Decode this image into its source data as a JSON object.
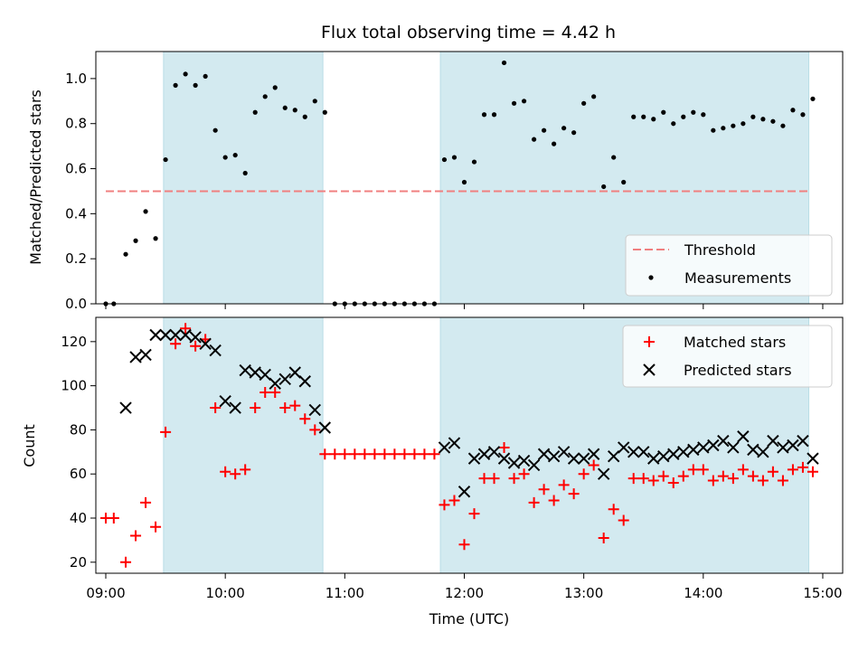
{
  "chart_data": {
    "type": "scatter",
    "title": "Flux total observing time = 4.42 h",
    "xlabel": "Time (UTC)",
    "x_ticks": [
      "09:00",
      "10:00",
      "11:00",
      "12:00",
      "13:00",
      "14:00",
      "15:00"
    ],
    "xlim": [
      "08:55",
      "15:10"
    ],
    "shaded_intervals": [
      [
        "09:29",
        "10:49"
      ],
      [
        "11:48",
        "14:53"
      ]
    ],
    "shade_color": "#d3eaf0",
    "top_panel": {
      "ylabel": "Matched/Predicted stars",
      "ylim": [
        0,
        1.12
      ],
      "y_ticks": [
        "0.0",
        "0.2",
        "0.4",
        "0.6",
        "0.8",
        "1.0"
      ],
      "threshold": {
        "name": "Threshold",
        "value": 0.5,
        "from": "09:00",
        "to": "14:53",
        "color": "#f08080"
      },
      "measurements": {
        "name": "Measurements",
        "color": "#000000",
        "points": [
          [
            "09:00",
            0.0
          ],
          [
            "09:04",
            0.0
          ],
          [
            "09:10",
            0.22
          ],
          [
            "09:15",
            0.28
          ],
          [
            "09:20",
            0.41
          ],
          [
            "09:25",
            0.29
          ],
          [
            "09:30",
            0.64
          ],
          [
            "09:35",
            0.97
          ],
          [
            "09:40",
            1.02
          ],
          [
            "09:45",
            0.97
          ],
          [
            "09:50",
            1.01
          ],
          [
            "09:55",
            0.77
          ],
          [
            "10:00",
            0.65
          ],
          [
            "10:05",
            0.66
          ],
          [
            "10:10",
            0.58
          ],
          [
            "10:15",
            0.85
          ],
          [
            "10:20",
            0.92
          ],
          [
            "10:25",
            0.96
          ],
          [
            "10:30",
            0.87
          ],
          [
            "10:35",
            0.86
          ],
          [
            "10:40",
            0.83
          ],
          [
            "10:45",
            0.9
          ],
          [
            "10:50",
            0.85
          ],
          [
            "10:55",
            0.0
          ],
          [
            "11:00",
            0.0
          ],
          [
            "11:05",
            0.0
          ],
          [
            "11:10",
            0.0
          ],
          [
            "11:15",
            0.0
          ],
          [
            "11:20",
            0.0
          ],
          [
            "11:25",
            0.0
          ],
          [
            "11:30",
            0.0
          ],
          [
            "11:35",
            0.0
          ],
          [
            "11:40",
            0.0
          ],
          [
            "11:45",
            0.0
          ],
          [
            "11:50",
            0.64
          ],
          [
            "11:55",
            0.65
          ],
          [
            "12:00",
            0.54
          ],
          [
            "12:05",
            0.63
          ],
          [
            "12:10",
            0.84
          ],
          [
            "12:15",
            0.84
          ],
          [
            "12:20",
            1.07
          ],
          [
            "12:25",
            0.89
          ],
          [
            "12:30",
            0.9
          ],
          [
            "12:35",
            0.73
          ],
          [
            "12:40",
            0.77
          ],
          [
            "12:45",
            0.71
          ],
          [
            "12:50",
            0.78
          ],
          [
            "12:55",
            0.76
          ],
          [
            "13:00",
            0.89
          ],
          [
            "13:05",
            0.92
          ],
          [
            "13:10",
            0.52
          ],
          [
            "13:15",
            0.65
          ],
          [
            "13:20",
            0.54
          ],
          [
            "13:25",
            0.83
          ],
          [
            "13:30",
            0.83
          ],
          [
            "13:35",
            0.82
          ],
          [
            "13:40",
            0.85
          ],
          [
            "13:45",
            0.8
          ],
          [
            "13:50",
            0.83
          ],
          [
            "13:55",
            0.85
          ],
          [
            "14:00",
            0.84
          ],
          [
            "14:05",
            0.77
          ],
          [
            "14:10",
            0.78
          ],
          [
            "14:15",
            0.79
          ],
          [
            "14:20",
            0.8
          ],
          [
            "14:25",
            0.83
          ],
          [
            "14:30",
            0.82
          ],
          [
            "14:35",
            0.81
          ],
          [
            "14:40",
            0.79
          ],
          [
            "14:45",
            0.86
          ],
          [
            "14:50",
            0.84
          ],
          [
            "14:55",
            0.91
          ]
        ]
      },
      "legend": {
        "position": "lower-right"
      }
    },
    "bottom_panel": {
      "ylabel": "Count",
      "ylim": [
        15,
        131
      ],
      "y_ticks": [
        "20",
        "40",
        "60",
        "80",
        "100",
        "120"
      ],
      "matched": {
        "name": "Matched stars",
        "color": "#ff0000",
        "marker": "plus",
        "points": [
          [
            "09:00",
            40
          ],
          [
            "09:04",
            40
          ],
          [
            "09:10",
            20
          ],
          [
            "09:15",
            32
          ],
          [
            "09:20",
            47
          ],
          [
            "09:25",
            36
          ],
          [
            "09:30",
            79
          ],
          [
            "09:35",
            119
          ],
          [
            "09:40",
            126
          ],
          [
            "09:45",
            118
          ],
          [
            "09:50",
            121
          ],
          [
            "09:55",
            90
          ],
          [
            "10:00",
            61
          ],
          [
            "10:05",
            60
          ],
          [
            "10:10",
            62
          ],
          [
            "10:15",
            90
          ],
          [
            "10:20",
            97
          ],
          [
            "10:25",
            97
          ],
          [
            "10:30",
            90
          ],
          [
            "10:35",
            91
          ],
          [
            "10:40",
            85
          ],
          [
            "10:45",
            80
          ],
          [
            "10:50",
            69
          ],
          [
            "10:55",
            69
          ],
          [
            "11:00",
            69
          ],
          [
            "11:05",
            69
          ],
          [
            "11:10",
            69
          ],
          [
            "11:15",
            69
          ],
          [
            "11:20",
            69
          ],
          [
            "11:25",
            69
          ],
          [
            "11:30",
            69
          ],
          [
            "11:35",
            69
          ],
          [
            "11:40",
            69
          ],
          [
            "11:45",
            69
          ],
          [
            "11:50",
            46
          ],
          [
            "11:55",
            48
          ],
          [
            "12:00",
            28
          ],
          [
            "12:05",
            42
          ],
          [
            "12:10",
            58
          ],
          [
            "12:15",
            58
          ],
          [
            "12:20",
            72
          ],
          [
            "12:25",
            58
          ],
          [
            "12:30",
            60
          ],
          [
            "12:35",
            47
          ],
          [
            "12:40",
            53
          ],
          [
            "12:45",
            48
          ],
          [
            "12:50",
            55
          ],
          [
            "12:55",
            51
          ],
          [
            "13:00",
            60
          ],
          [
            "13:05",
            64
          ],
          [
            "13:10",
            31
          ],
          [
            "13:15",
            44
          ],
          [
            "13:20",
            39
          ],
          [
            "13:25",
            58
          ],
          [
            "13:30",
            58
          ],
          [
            "13:35",
            57
          ],
          [
            "13:40",
            59
          ],
          [
            "13:45",
            56
          ],
          [
            "13:50",
            59
          ],
          [
            "13:55",
            62
          ],
          [
            "14:00",
            62
          ],
          [
            "14:05",
            57
          ],
          [
            "14:10",
            59
          ],
          [
            "14:15",
            58
          ],
          [
            "14:20",
            62
          ],
          [
            "14:25",
            59
          ],
          [
            "14:30",
            57
          ],
          [
            "14:35",
            61
          ],
          [
            "14:40",
            57
          ],
          [
            "14:45",
            62
          ],
          [
            "14:50",
            63
          ],
          [
            "14:55",
            61
          ]
        ]
      },
      "predicted": {
        "name": "Predicted stars",
        "color": "#000000",
        "marker": "x",
        "points": [
          [
            "09:10",
            90
          ],
          [
            "09:15",
            113
          ],
          [
            "09:20",
            114
          ],
          [
            "09:25",
            123
          ],
          [
            "09:30",
            123
          ],
          [
            "09:35",
            123
          ],
          [
            "09:40",
            123
          ],
          [
            "09:45",
            122
          ],
          [
            "09:50",
            119
          ],
          [
            "09:55",
            116
          ],
          [
            "10:00",
            93
          ],
          [
            "10:05",
            90
          ],
          [
            "10:10",
            107
          ],
          [
            "10:15",
            106
          ],
          [
            "10:20",
            105
          ],
          [
            "10:25",
            101
          ],
          [
            "10:30",
            103
          ],
          [
            "10:35",
            106
          ],
          [
            "10:40",
            102
          ],
          [
            "10:45",
            89
          ],
          [
            "10:50",
            81
          ],
          [
            "11:50",
            72
          ],
          [
            "11:55",
            74
          ],
          [
            "12:00",
            52
          ],
          [
            "12:05",
            67
          ],
          [
            "12:10",
            69
          ],
          [
            "12:15",
            70
          ],
          [
            "12:20",
            67
          ],
          [
            "12:25",
            65
          ],
          [
            "12:30",
            66
          ],
          [
            "12:35",
            64
          ],
          [
            "12:40",
            69
          ],
          [
            "12:45",
            68
          ],
          [
            "12:50",
            70
          ],
          [
            "12:55",
            67
          ],
          [
            "13:00",
            67
          ],
          [
            "13:05",
            69
          ],
          [
            "13:10",
            60
          ],
          [
            "13:15",
            68
          ],
          [
            "13:20",
            72
          ],
          [
            "13:25",
            70
          ],
          [
            "13:30",
            70
          ],
          [
            "13:35",
            67
          ],
          [
            "13:40",
            68
          ],
          [
            "13:45",
            69
          ],
          [
            "13:50",
            70
          ],
          [
            "13:55",
            71
          ],
          [
            "14:00",
            72
          ],
          [
            "14:05",
            73
          ],
          [
            "14:10",
            75
          ],
          [
            "14:15",
            72
          ],
          [
            "14:20",
            77
          ],
          [
            "14:25",
            71
          ],
          [
            "14:30",
            70
          ],
          [
            "14:35",
            75
          ],
          [
            "14:40",
            72
          ],
          [
            "14:45",
            73
          ],
          [
            "14:50",
            75
          ],
          [
            "14:55",
            67
          ]
        ]
      },
      "legend": {
        "position": "upper-right"
      }
    }
  }
}
